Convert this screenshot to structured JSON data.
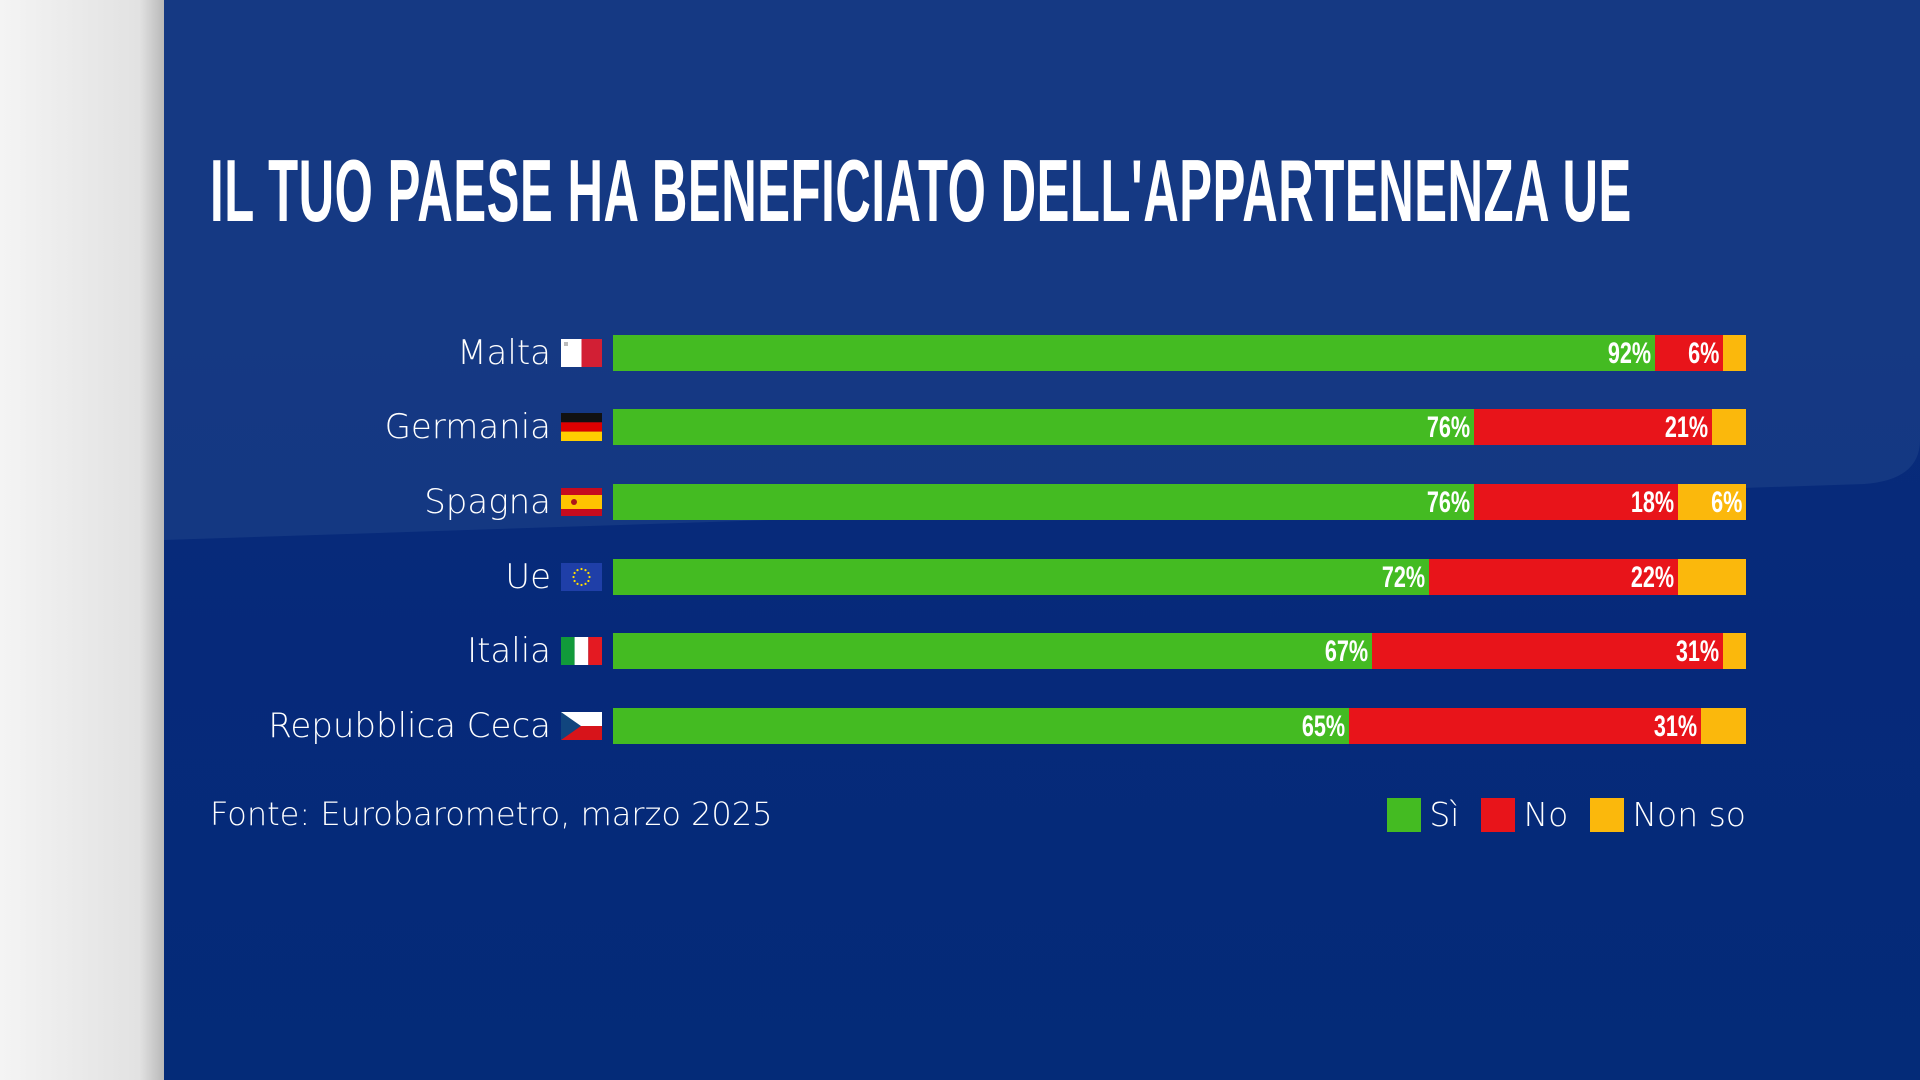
{
  "chart_data": {
    "type": "bar",
    "orientation": "horizontal",
    "stacked": true,
    "title": "IL TUO PAESE HA BENEFICIATO DELL'APPARTENENZA UE",
    "categories": [
      "Malta",
      "Germania",
      "Spagna",
      "Ue",
      "Italia",
      "Repubblica Ceca"
    ],
    "flags": [
      "malta-flag-icon",
      "germany-flag-icon",
      "spain-flag-icon",
      "eu-flag-icon",
      "italy-flag-icon",
      "czech-flag-icon"
    ],
    "series": [
      {
        "name": "Sì",
        "color": "#44bb22",
        "values": [
          92,
          76,
          76,
          72,
          67,
          65
        ],
        "labels": [
          "92%",
          "76%",
          "76%",
          "72%",
          "67%",
          "65%"
        ]
      },
      {
        "name": "No",
        "color": "#e8141a",
        "values": [
          6,
          21,
          18,
          22,
          31,
          31
        ],
        "labels": [
          "6%",
          "21%",
          "18%",
          "22%",
          "31%",
          "31%"
        ]
      },
      {
        "name": "Non so",
        "color": "#fbb80c",
        "values": [
          2,
          3,
          6,
          6,
          2,
          4
        ],
        "labels": [
          "",
          "",
          "6%",
          "",
          "",
          ""
        ]
      }
    ],
    "xlim": [
      0,
      100
    ],
    "grid": false,
    "legend": "bottom-right",
    "source": "Fonte: Eurobarometro, marzo 2025"
  }
}
